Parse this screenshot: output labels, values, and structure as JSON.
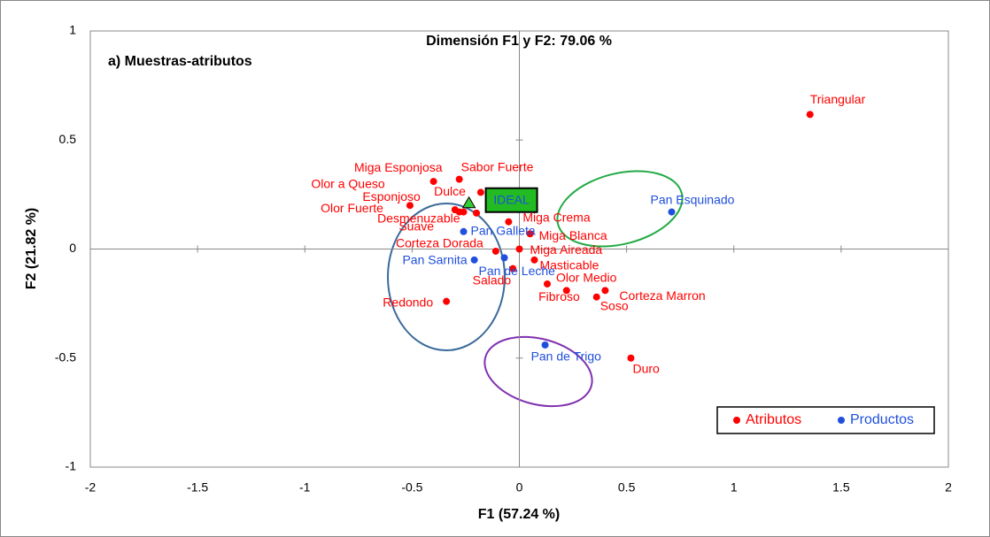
{
  "chart_data": {
    "type": "scatter",
    "title": "Dimensión F1 y F2: 79.06 %",
    "subtitle": "a)  Muestras-atributos",
    "xlabel": "F1 (57.24 %)",
    "ylabel": "F2 (21.82 %)",
    "xlim": [
      -2,
      2
    ],
    "ylim": [
      -1,
      1
    ],
    "xticks": [
      -2,
      -1.5,
      -1,
      -0.5,
      0,
      0.5,
      1,
      1.5,
      2
    ],
    "yticks": [
      -1,
      -0.5,
      0,
      0.5,
      1
    ],
    "legend": "bottom-right",
    "series": [
      {
        "name": "Atributos",
        "color": "#ff0000",
        "labels": [
          "Triangular",
          "Miga Esponjosa",
          "Sabor Fuerte",
          "Olor Fuerte",
          "Esponjoso",
          "Dulce",
          "Olor a Queso",
          "Desmenuzable",
          "Suave",
          "Miga Crema",
          "Miga Blanca",
          "Corteza Dorada",
          "Miga Aireada",
          "Masticable",
          "Salado",
          "Olor Medio",
          "Fibroso",
          "Corteza Marron",
          "Soso",
          "Redondo",
          "Duro"
        ],
        "x": [
          1.355,
          -0.4,
          -0.28,
          -0.51,
          -0.3,
          -0.18,
          -0.28,
          -0.26,
          -0.2,
          -0.05,
          0.05,
          -0.11,
          0.0,
          0.07,
          -0.03,
          0.13,
          0.22,
          0.4,
          0.36,
          -0.34,
          0.52
        ],
        "values": [
          0.617,
          0.31,
          0.32,
          0.2,
          0.18,
          0.26,
          0.17,
          0.17,
          0.165,
          0.125,
          0.07,
          -0.01,
          0.0,
          -0.05,
          -0.09,
          -0.16,
          -0.19,
          -0.19,
          -0.22,
          -0.24,
          -0.5
        ]
      },
      {
        "name": "Productos",
        "color": "#1f4fdc",
        "labels": [
          "Pan Esquinado",
          "Pan Galleta",
          "Pan Sarnita",
          "Pan de Leche",
          "Pan de Trigo"
        ],
        "x": [
          0.71,
          -0.26,
          -0.21,
          -0.07,
          0.12
        ],
        "values": [
          0.17,
          0.08,
          -0.05,
          -0.04,
          -0.44
        ]
      }
    ],
    "ideal": {
      "label": "IDEAL",
      "x": -0.235,
      "y": 0.21
    }
  }
}
